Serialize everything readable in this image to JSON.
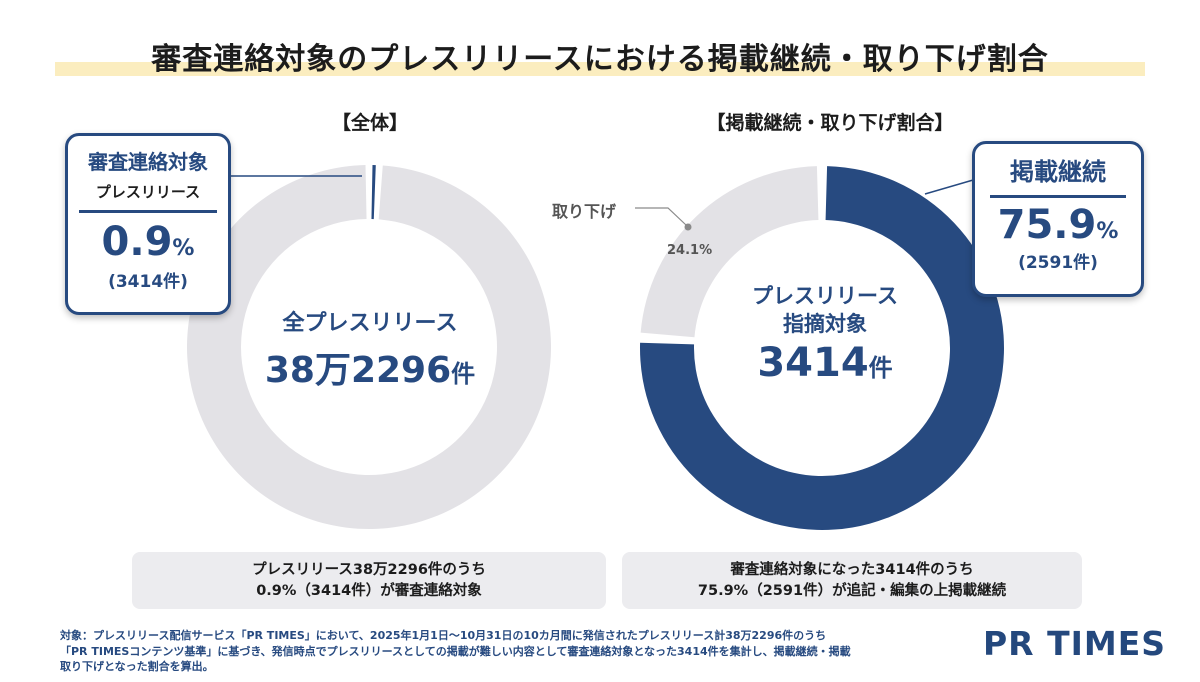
{
  "title": "審査連絡対象のプレスリリースにおける掲載継続・取り下げ割合",
  "left": {
    "heading": "【全体】",
    "center_line1": "全プレスリリース",
    "center_number": "38万2296",
    "center_unit": "件",
    "callout_line1": "審査連絡対象",
    "callout_line2": "プレスリリース",
    "callout_value": "0.9",
    "callout_pct": "%",
    "callout_count": "(3414件)",
    "summary_line1": "プレスリリース38万2296件のうち",
    "summary_line2": "0.9%（3414件）が審査連絡対象"
  },
  "right": {
    "heading": "【掲載継続・取り下げ割合】",
    "center_line1": "プレスリリース",
    "center_line2": "指摘対象",
    "center_number": "3414",
    "center_unit": "件",
    "callout_label": "掲載継続",
    "callout_value": "75.9",
    "callout_pct": "%",
    "callout_count": "(2591件)",
    "withdraw_label": "取り下げ",
    "withdraw_pct": "24.1%",
    "summary_line1": "審査連絡対象になった3414件のうち",
    "summary_line2": "75.9%（2591件）が追記・編集の上掲載継続"
  },
  "note_lines": [
    "対象：プレスリリース配信サービス「PR TIMES」において、2025年1月1日〜10月31日の10カ月間に発信されたプレスリリース計38万2296件のうち",
    "「PR TIMESコンテンツ基準」に基づき、発信時点でプレスリリースとしての掲載が難しい内容として審査連絡対象となった3414件を集計し、掲載継続・掲載",
    "取り下げとなった割合を算出。"
  ],
  "logo": "PR TIMES",
  "colors": {
    "navy": "#274a80",
    "gray": "#e3e2e6",
    "title_band": "#fbedbf"
  },
  "chart_data": [
    {
      "type": "pie",
      "title": "【全体】",
      "categories": [
        "審査連絡対象プレスリリース",
        "全プレスリリース"
      ],
      "values": [
        0.9,
        99.1
      ],
      "counts": [
        3414,
        378882
      ],
      "total": 382296,
      "colors": [
        "#274a80",
        "#e3e2e6"
      ]
    },
    {
      "type": "pie",
      "title": "【掲載継続・取り下げ割合】",
      "categories": [
        "掲載継続",
        "取り下げ"
      ],
      "values": [
        75.9,
        24.1
      ],
      "counts": [
        2591,
        823
      ],
      "total": 3414,
      "colors": [
        "#274a80",
        "#e3e2e6"
      ]
    }
  ]
}
